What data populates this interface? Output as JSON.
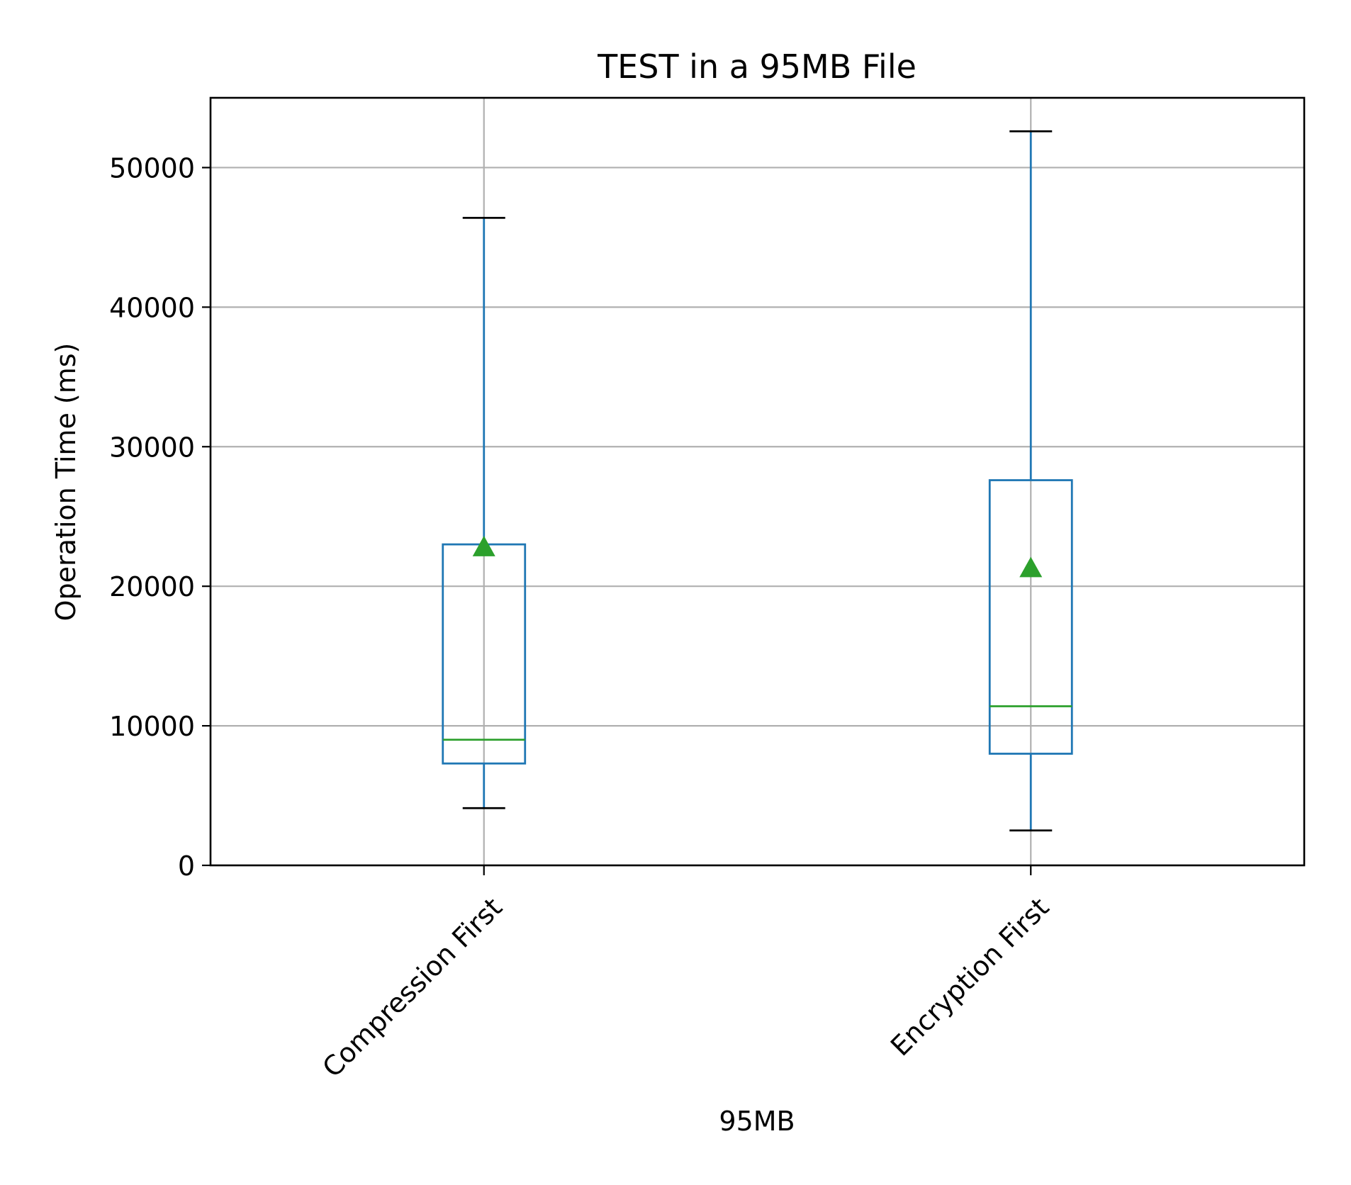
{
  "chart_data": {
    "type": "boxplot",
    "title": "TEST in a 95MB File",
    "xlabel": "95MB",
    "ylabel": "Operation Time (ms)",
    "ylim": [
      0,
      55000
    ],
    "yticks": [
      0,
      10000,
      20000,
      30000,
      40000,
      50000
    ],
    "ytick_labels": [
      "0",
      "10000",
      "20000",
      "30000",
      "40000",
      "50000"
    ],
    "grid": true,
    "categories": [
      "Compression First",
      "Encryption First"
    ],
    "boxes": [
      {
        "category": "Compression First",
        "whisker_low": 4100,
        "q1": 7300,
        "median": 9000,
        "q3": 23000,
        "whisker_high": 46400,
        "mean": 22800
      },
      {
        "category": "Encryption First",
        "whisker_low": 2500,
        "q1": 8000,
        "median": 11400,
        "q3": 27600,
        "whisker_high": 52600,
        "mean": 21300
      }
    ],
    "colors": {
      "box": "#1f77b4",
      "median": "#2ca02c",
      "mean_marker": "#2ca02c",
      "whisker_cap": "#000000",
      "grid": "#b0b0b0"
    }
  }
}
